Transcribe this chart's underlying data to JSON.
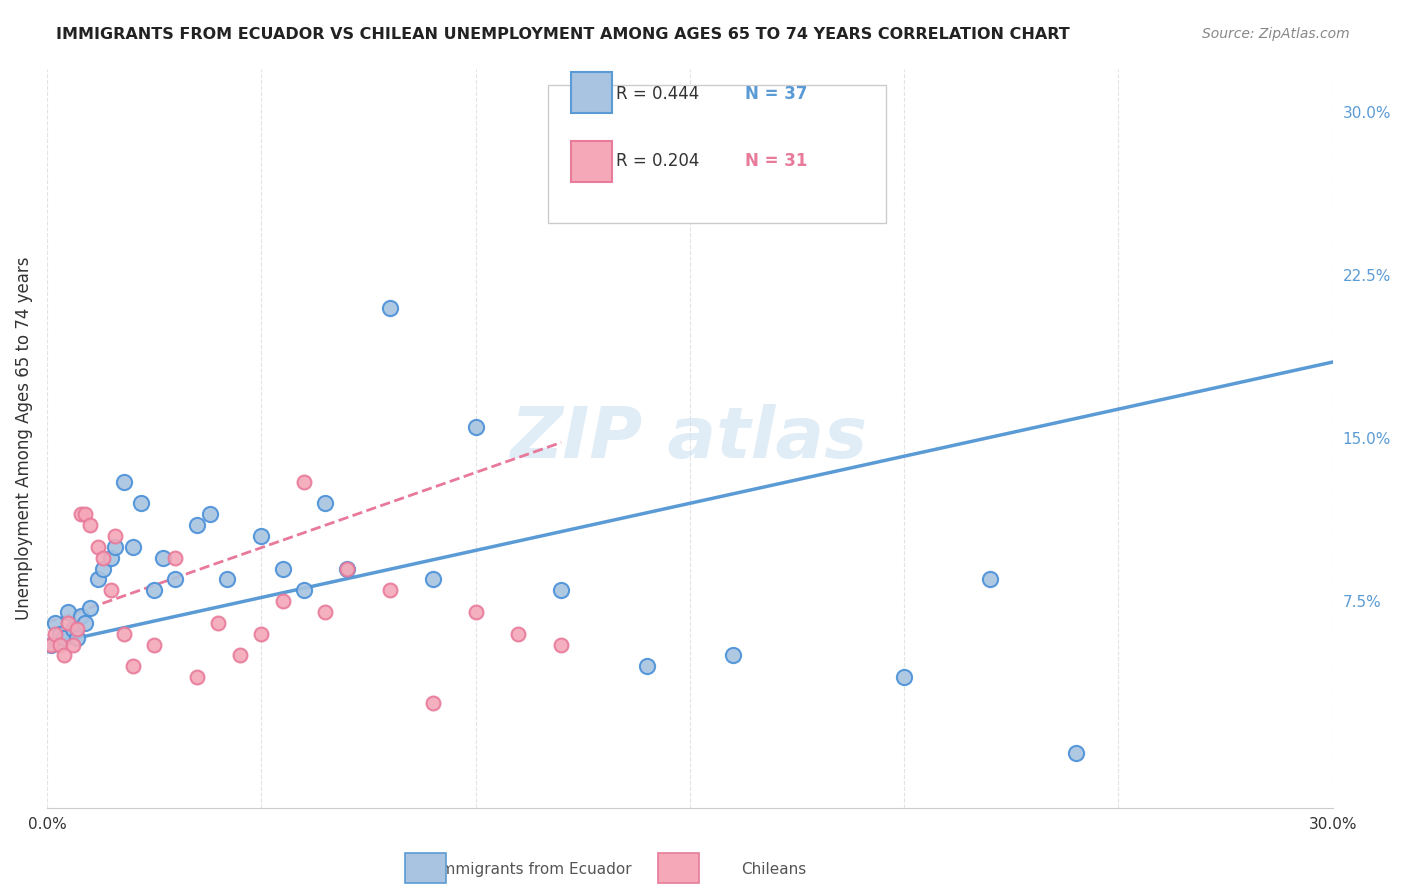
{
  "title": "IMMIGRANTS FROM ECUADOR VS CHILEAN UNEMPLOYMENT AMONG AGES 65 TO 74 YEARS CORRELATION CHART",
  "source": "Source: ZipAtlas.com",
  "xlabel_bottom": "",
  "ylabel": "Unemployment Among Ages 65 to 74 years",
  "xlim": [
    0,
    0.3
  ],
  "ylim": [
    -0.02,
    0.32
  ],
  "xticks": [
    0.0,
    0.05,
    0.1,
    0.15,
    0.2,
    0.25,
    0.3
  ],
  "xtick_labels": [
    "0.0%",
    "",
    "",
    "",
    "",
    "",
    "30.0%"
  ],
  "yticks_right": [
    0.0,
    0.075,
    0.15,
    0.225,
    0.3
  ],
  "ytick_labels_right": [
    "",
    "7.5%",
    "15.0%",
    "22.5%",
    "30.0%"
  ],
  "legend_r1": "R = 0.444",
  "legend_n1": "N = 37",
  "legend_r2": "R = 0.204",
  "legend_n2": "N = 31",
  "color_ecuador": "#a8c4e0",
  "color_chile": "#f4a8b8",
  "color_ecuador_dark": "#4a90d9",
  "color_chile_dark": "#e87a9a",
  "color_line_ecuador": "#5b9bd5",
  "color_line_chile": "#e8799a",
  "watermark": "ZIPatlas",
  "ecuador_scatter_x": [
    0.001,
    0.002,
    0.003,
    0.004,
    0.005,
    0.006,
    0.007,
    0.008,
    0.009,
    0.01,
    0.012,
    0.013,
    0.015,
    0.016,
    0.018,
    0.02,
    0.022,
    0.025,
    0.027,
    0.03,
    0.035,
    0.038,
    0.042,
    0.05,
    0.055,
    0.06,
    0.065,
    0.07,
    0.08,
    0.09,
    0.1,
    0.12,
    0.14,
    0.16,
    0.2,
    0.22,
    0.24
  ],
  "ecuador_scatter_y": [
    0.055,
    0.065,
    0.06,
    0.058,
    0.07,
    0.062,
    0.058,
    0.068,
    0.065,
    0.072,
    0.085,
    0.09,
    0.095,
    0.1,
    0.13,
    0.1,
    0.12,
    0.08,
    0.095,
    0.085,
    0.11,
    0.115,
    0.085,
    0.105,
    0.09,
    0.08,
    0.12,
    0.09,
    0.21,
    0.085,
    0.155,
    0.08,
    0.045,
    0.05,
    0.04,
    0.085,
    0.005
  ],
  "chile_scatter_x": [
    0.001,
    0.002,
    0.003,
    0.004,
    0.005,
    0.006,
    0.007,
    0.008,
    0.009,
    0.01,
    0.012,
    0.013,
    0.015,
    0.016,
    0.018,
    0.02,
    0.025,
    0.03,
    0.035,
    0.04,
    0.045,
    0.05,
    0.055,
    0.06,
    0.065,
    0.07,
    0.08,
    0.09,
    0.1,
    0.11,
    0.12
  ],
  "chile_scatter_y": [
    0.055,
    0.06,
    0.055,
    0.05,
    0.065,
    0.055,
    0.062,
    0.115,
    0.115,
    0.11,
    0.1,
    0.095,
    0.08,
    0.105,
    0.06,
    0.045,
    0.055,
    0.095,
    0.04,
    0.065,
    0.05,
    0.06,
    0.075,
    0.13,
    0.07,
    0.09,
    0.08,
    0.028,
    0.07,
    0.06,
    0.055
  ],
  "ecuador_line_x": [
    0.0,
    0.3
  ],
  "ecuador_line_y": [
    0.055,
    0.185
  ],
  "chile_line_x": [
    0.0,
    0.12
  ],
  "chile_line_y": [
    0.065,
    0.148
  ],
  "background_color": "#ffffff",
  "grid_color": "#dddddd"
}
